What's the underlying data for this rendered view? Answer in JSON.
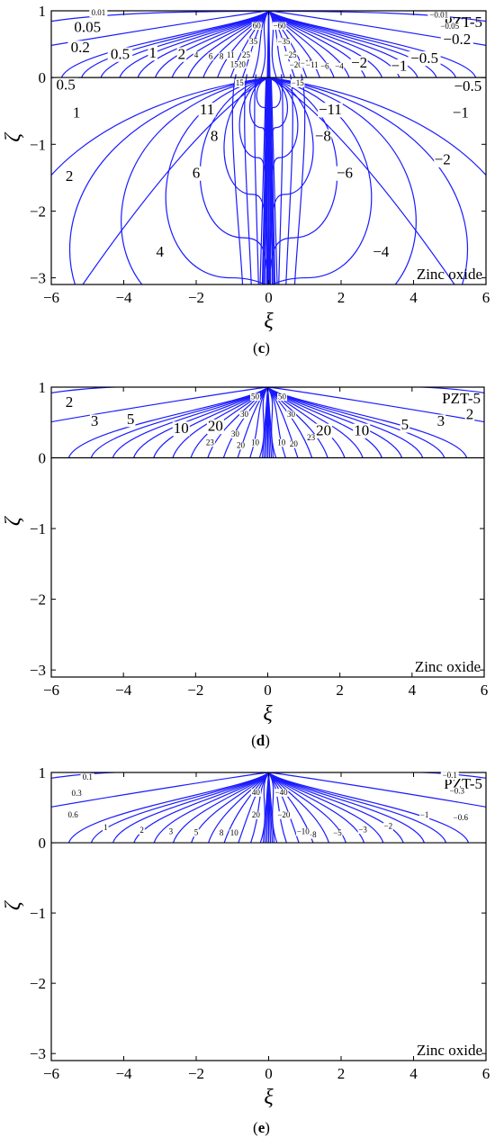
{
  "chart_data": [
    {
      "type": "line",
      "panel": "c",
      "top_label": "PZT-5",
      "bottom_label": "Zinc oxide",
      "xlabel": "ξ",
      "ylabel": "ζ",
      "xlim": [
        -6,
        6
      ],
      "ylim": [
        -3.1,
        1
      ],
      "xticks": [
        "−6",
        "−4",
        "−2",
        "0",
        "2",
        "4",
        "6"
      ],
      "yticks": [
        "−3",
        "−2",
        "−1",
        "0",
        "1"
      ],
      "contour_labels": [
        {
          "text": "0.01",
          "x": -4.7,
          "y": 0.93,
          "size": 9
        },
        {
          "text": "0.05",
          "x": -5.0,
          "y": 0.68,
          "size": 17
        },
        {
          "text": "0.2",
          "x": -5.2,
          "y": 0.38,
          "size": 17
        },
        {
          "text": "0.5",
          "x": -4.1,
          "y": 0.28,
          "size": 17
        },
        {
          "text": "1",
          "x": -3.2,
          "y": 0.3,
          "size": 17
        },
        {
          "text": "2",
          "x": -2.4,
          "y": 0.28,
          "size": 17
        },
        {
          "text": "0.5",
          "x": -5.6,
          "y": -0.18,
          "size": 17
        },
        {
          "text": "1",
          "x": -5.3,
          "y": -0.6,
          "size": 17
        },
        {
          "text": "2",
          "x": -5.5,
          "y": -1.55,
          "size": 17
        },
        {
          "text": "11",
          "x": -1.7,
          "y": -0.55,
          "size": 17
        },
        {
          "text": "8",
          "x": -1.5,
          "y": -0.95,
          "size": 17
        },
        {
          "text": "6",
          "x": -2.0,
          "y": -1.5,
          "size": 17
        },
        {
          "text": "4",
          "x": -3.0,
          "y": -2.68,
          "size": 17
        },
        {
          "text": "−0.01",
          "x": 4.7,
          "y": 0.9,
          "size": 9
        },
        {
          "text": "−0.05",
          "x": 5.0,
          "y": 0.73,
          "size": 9
        },
        {
          "text": "−0.2",
          "x": 5.2,
          "y": 0.5,
          "size": 17
        },
        {
          "text": "−0.5",
          "x": 4.3,
          "y": 0.22,
          "size": 17
        },
        {
          "text": "−1",
          "x": 3.6,
          "y": 0.1,
          "size": 17
        },
        {
          "text": "−2",
          "x": 2.5,
          "y": 0.15,
          "size": 17
        },
        {
          "text": "−0.5",
          "x": 5.5,
          "y": -0.2,
          "size": 17
        },
        {
          "text": "−1",
          "x": 5.3,
          "y": -0.6,
          "size": 17
        },
        {
          "text": "−2",
          "x": 4.8,
          "y": -1.3,
          "size": 17
        },
        {
          "text": "−11",
          "x": 1.7,
          "y": -0.55,
          "size": 17
        },
        {
          "text": "−8",
          "x": 1.5,
          "y": -0.95,
          "size": 17
        },
        {
          "text": "−6",
          "x": 2.1,
          "y": -1.5,
          "size": 17
        },
        {
          "text": "−4",
          "x": 3.1,
          "y": -2.68,
          "size": 17
        },
        {
          "text": "60",
          "x": -0.33,
          "y": 0.74,
          "size": 9
        },
        {
          "text": "35",
          "x": -0.42,
          "y": 0.5,
          "size": 9
        },
        {
          "text": "25",
          "x": -0.62,
          "y": 0.3,
          "size": 9
        },
        {
          "text": "20",
          "x": -0.75,
          "y": 0.16,
          "size": 9
        },
        {
          "text": "15",
          "x": -0.95,
          "y": 0.16,
          "size": 9
        },
        {
          "text": "11",
          "x": -1.05,
          "y": 0.3,
          "size": 9
        },
        {
          "text": "8",
          "x": -1.3,
          "y": 0.28,
          "size": 9
        },
        {
          "text": "6",
          "x": -1.6,
          "y": 0.28,
          "size": 9
        },
        {
          "text": "4",
          "x": -2.0,
          "y": 0.3,
          "size": 9
        },
        {
          "text": "15",
          "x": -0.8,
          "y": -0.12,
          "size": 9
        },
        {
          "text": "−60",
          "x": 0.3,
          "y": 0.74,
          "size": 9
        },
        {
          "text": "−35",
          "x": 0.42,
          "y": 0.5,
          "size": 9
        },
        {
          "text": "−25",
          "x": 0.6,
          "y": 0.3,
          "size": 9
        },
        {
          "text": "−20",
          "x": 0.75,
          "y": 0.15,
          "size": 9
        },
        {
          "text": "−15",
          "x": 1.05,
          "y": 0.18,
          "size": 9
        },
        {
          "text": "−11",
          "x": 1.2,
          "y": 0.15,
          "size": 9
        },
        {
          "text": "−6",
          "x": 1.55,
          "y": 0.13,
          "size": 9
        },
        {
          "text": "−4",
          "x": 1.95,
          "y": 0.13,
          "size": 9
        },
        {
          "text": "−15",
          "x": 0.8,
          "y": -0.12,
          "size": 9
        }
      ]
    },
    {
      "type": "line",
      "panel": "d",
      "top_label": "PZT-5",
      "bottom_label": "Zinc oxide",
      "xlabel": "ξ",
      "ylabel": "ζ",
      "xlim": [
        -6,
        6
      ],
      "ylim": [
        -3.1,
        1
      ],
      "xticks": [
        "−6",
        "−4",
        "−2",
        "0",
        "2",
        "4",
        "6"
      ],
      "yticks": [
        "−3",
        "−2",
        "−1",
        "0",
        "1"
      ],
      "contour_labels": [
        {
          "text": "2",
          "x": -5.5,
          "y": 0.72,
          "size": 17
        },
        {
          "text": "3",
          "x": -4.8,
          "y": 0.45,
          "size": 17
        },
        {
          "text": "5",
          "x": -3.8,
          "y": 0.48,
          "size": 17
        },
        {
          "text": "10",
          "x": -2.4,
          "y": 0.35,
          "size": 17
        },
        {
          "text": "20",
          "x": -1.45,
          "y": 0.38,
          "size": 17
        },
        {
          "text": "23",
          "x": -1.6,
          "y": 0.18,
          "size": 9
        },
        {
          "text": "50",
          "x": -0.35,
          "y": 0.83,
          "size": 9
        },
        {
          "text": "30",
          "x": -0.65,
          "y": 0.58,
          "size": 9
        },
        {
          "text": "30",
          "x": -0.9,
          "y": 0.3,
          "size": 9
        },
        {
          "text": "20",
          "x": -0.75,
          "y": 0.14,
          "size": 9
        },
        {
          "text": "10",
          "x": -0.35,
          "y": 0.18,
          "size": 9
        },
        {
          "text": "2",
          "x": 5.6,
          "y": 0.55,
          "size": 17
        },
        {
          "text": "3",
          "x": 4.8,
          "y": 0.45,
          "size": 17
        },
        {
          "text": "5",
          "x": 3.8,
          "y": 0.4,
          "size": 17
        },
        {
          "text": "10",
          "x": 2.6,
          "y": 0.32,
          "size": 17
        },
        {
          "text": "20",
          "x": 1.55,
          "y": 0.32,
          "size": 17
        },
        {
          "text": "23",
          "x": 1.2,
          "y": 0.25,
          "size": 9
        },
        {
          "text": "50",
          "x": 0.4,
          "y": 0.83,
          "size": 9
        },
        {
          "text": "30",
          "x": 0.65,
          "y": 0.58,
          "size": 9
        },
        {
          "text": "20",
          "x": 0.72,
          "y": 0.16,
          "size": 9
        },
        {
          "text": "10",
          "x": 0.38,
          "y": 0.18,
          "size": 9
        }
      ]
    },
    {
      "type": "line",
      "panel": "e",
      "top_label": "PZT-5",
      "bottom_label": "Zinc oxide",
      "xlabel": "ξ",
      "ylabel": "ζ",
      "xlim": [
        -6,
        6
      ],
      "ylim": [
        -3.1,
        1
      ],
      "xticks": [
        "−6",
        "−4",
        "−2",
        "0",
        "2",
        "4",
        "6"
      ],
      "yticks": [
        "−3",
        "−2",
        "−1",
        "0",
        "1"
      ],
      "contour_labels": [
        {
          "text": "0.1",
          "x": -5.0,
          "y": 0.9,
          "size": 9
        },
        {
          "text": "0.3",
          "x": -5.3,
          "y": 0.67,
          "size": 9
        },
        {
          "text": "0.6",
          "x": -5.4,
          "y": 0.36,
          "size": 9
        },
        {
          "text": "1",
          "x": -4.5,
          "y": 0.18,
          "size": 9
        },
        {
          "text": "2",
          "x": -3.5,
          "y": 0.14,
          "size": 9
        },
        {
          "text": "3",
          "x": -2.7,
          "y": 0.12,
          "size": 9
        },
        {
          "text": "5",
          "x": -2.0,
          "y": 0.11,
          "size": 9
        },
        {
          "text": "8",
          "x": -1.3,
          "y": 0.1,
          "size": 9
        },
        {
          "text": "10",
          "x": -0.95,
          "y": 0.1,
          "size": 9
        },
        {
          "text": "40",
          "x": -0.35,
          "y": 0.68,
          "size": 9
        },
        {
          "text": "20",
          "x": -0.35,
          "y": 0.36,
          "size": 9
        },
        {
          "text": "−0.1",
          "x": 5.0,
          "y": 0.92,
          "size": 9
        },
        {
          "text": "−0.3",
          "x": 5.2,
          "y": 0.7,
          "size": 9
        },
        {
          "text": "−0.6",
          "x": 5.3,
          "y": 0.32,
          "size": 9
        },
        {
          "text": "−1",
          "x": 4.3,
          "y": 0.36,
          "size": 9
        },
        {
          "text": "−2",
          "x": 3.3,
          "y": 0.2,
          "size": 9
        },
        {
          "text": "−3",
          "x": 2.6,
          "y": 0.15,
          "size": 9
        },
        {
          "text": "−5",
          "x": 1.9,
          "y": 0.1,
          "size": 9
        },
        {
          "text": "−8",
          "x": 1.2,
          "y": 0.08,
          "size": 9
        },
        {
          "text": "−10",
          "x": 0.95,
          "y": 0.12,
          "size": 9
        },
        {
          "text": "−40",
          "x": 0.35,
          "y": 0.68,
          "size": 9
        },
        {
          "text": "−20",
          "x": 0.42,
          "y": 0.36,
          "size": 9
        }
      ]
    }
  ],
  "panel_labels": [
    "(c)",
    "(d)",
    "(e)"
  ],
  "colors": {
    "contour": "#1a1aff",
    "axes": "#000000"
  }
}
